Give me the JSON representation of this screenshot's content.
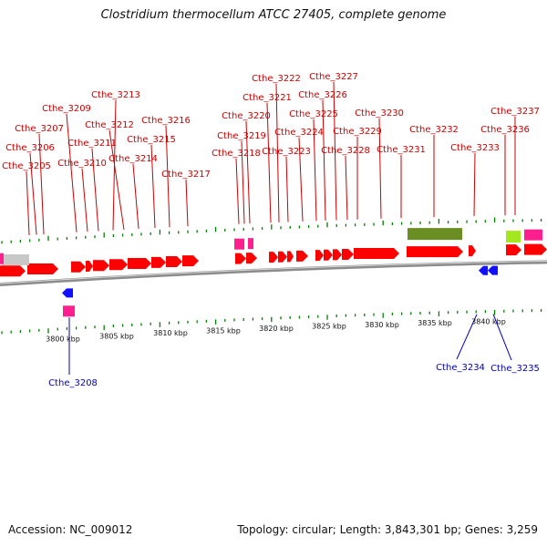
{
  "title": "Clostridium thermocellum ATCC 27405, complete genome",
  "footer": {
    "accession": "Accession: NC_009012",
    "summary": "Topology: circular; Length: 3,843,301 bp; Genes: 3,259"
  },
  "colors": {
    "cds": "#ff0000",
    "rna": "#ff1f8f",
    "reverse_cds": "#1010ff",
    "forward_label": "#cc0000",
    "reverse_label": "#0000bb",
    "tick": "#008000",
    "other": "#6b8e23",
    "other_light": "#a4e620",
    "gray_feature": "#c8c8c8"
  },
  "kbp_ticks": [
    "3800 kbp",
    "3805 kbp",
    "3810 kbp",
    "3815 kbp",
    "3820 kbp",
    "3825 kbp",
    "3830 kbp",
    "3835 kbp",
    "3840 kbp"
  ],
  "forward_labels": [
    "Cthe_3205",
    "Cthe_3206",
    "Cthe_3207",
    "Cthe_3209",
    "Cthe_3210",
    "Cthe_3211",
    "Cthe_3213",
    "Cthe_3212",
    "Cthe_3214",
    "Cthe_3215",
    "Cthe_3216",
    "Cthe_3217",
    "Cthe_3218",
    "Cthe_3219",
    "Cthe_3220",
    "Cthe_3221",
    "Cthe_3222",
    "Cthe_3223",
    "Cthe_3224",
    "Cthe_3225",
    "Cthe_3226",
    "Cthe_3227",
    "Cthe_3228",
    "Cthe_3229",
    "Cthe_3230",
    "Cthe_3231",
    "Cthe_3232",
    "Cthe_3233",
    "Cthe_3236",
    "Cthe_3237"
  ],
  "reverse_labels": [
    "Cthe_3208",
    "Cthe_3234",
    "Cthe_3235"
  ]
}
